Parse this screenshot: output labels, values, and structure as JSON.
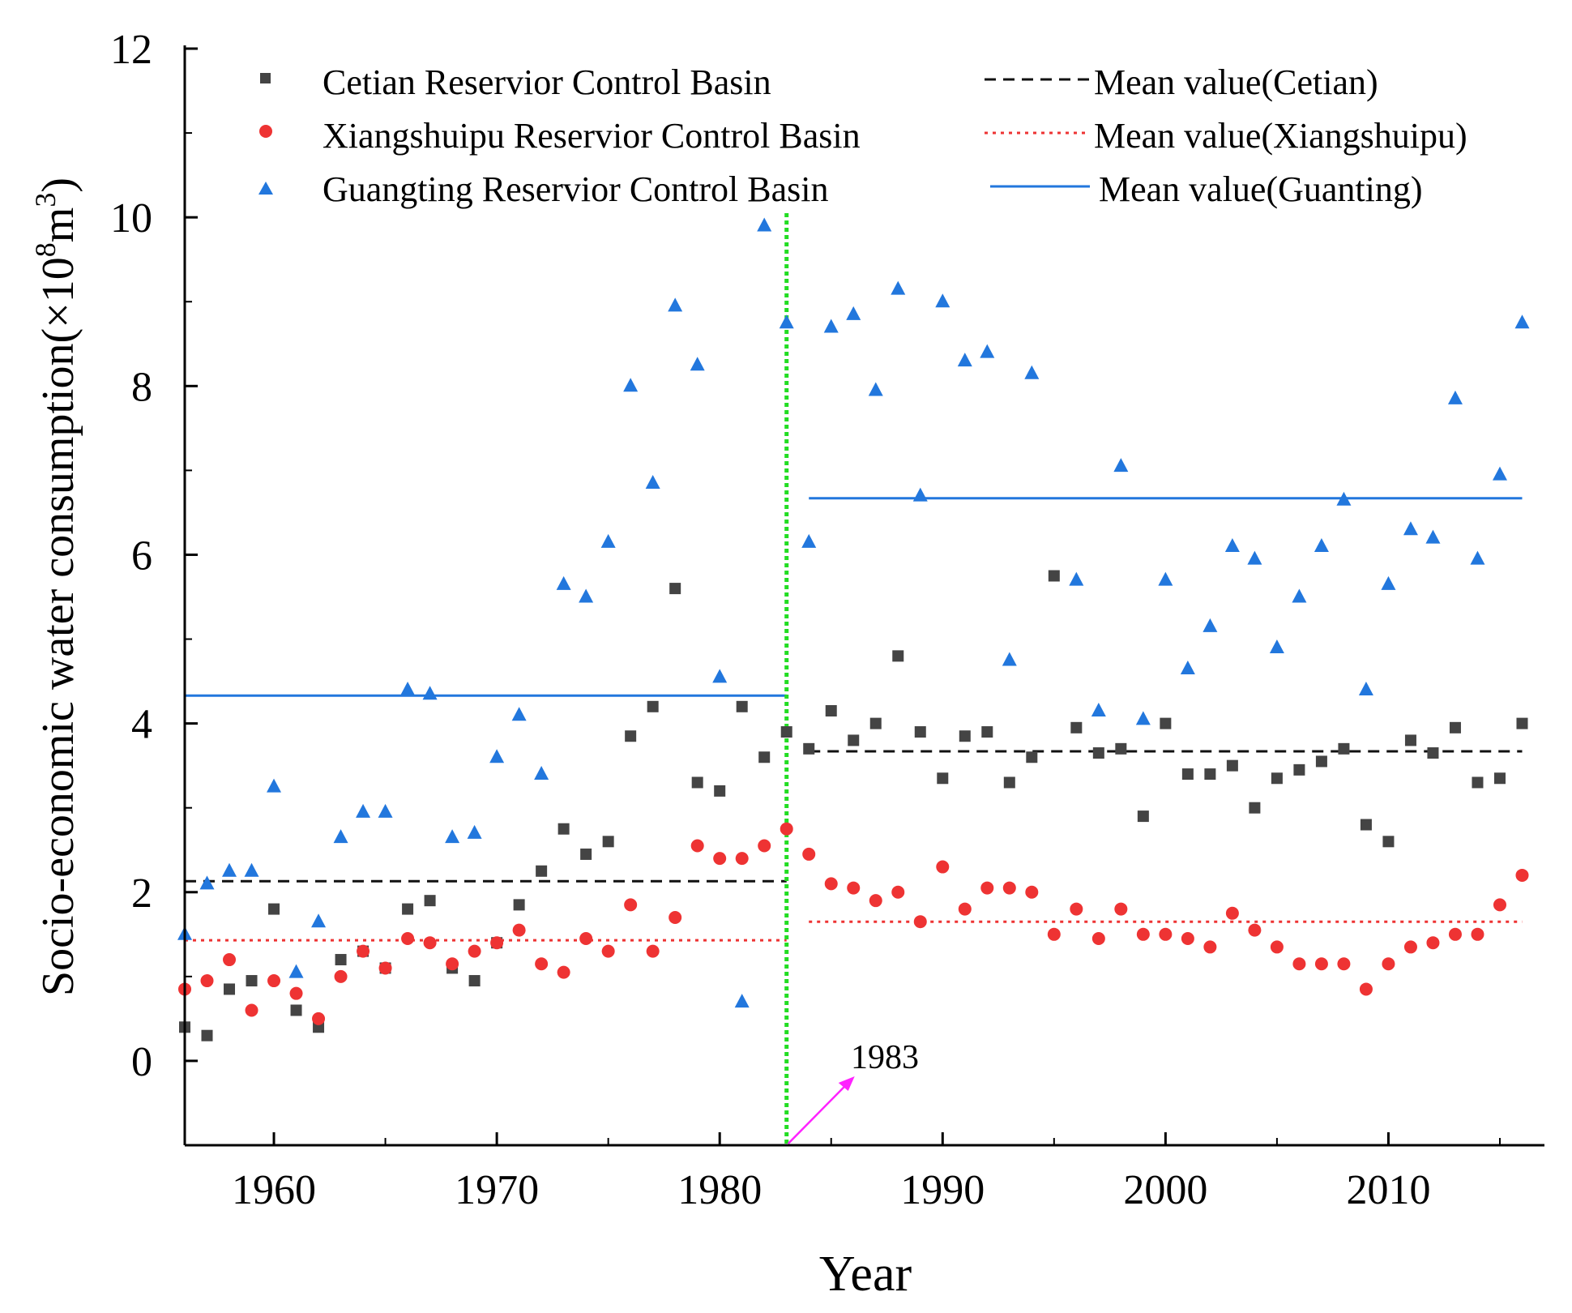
{
  "chart_data": {
    "type": "scatter",
    "xlabel": "Year",
    "ylabel_main": "Socio-economic water consumption(×10",
    "ylabel_exp1": "8",
    "ylabel_mid": "m",
    "ylabel_exp2": "3",
    "ylabel_end": ")",
    "xlim": [
      1956,
      2017
    ],
    "ylim": [
      -1,
      12
    ],
    "xticks": [
      1960,
      1970,
      1980,
      1990,
      2000,
      2010
    ],
    "xtick_labels": [
      "1960",
      "1970",
      "1980",
      "1990",
      "2000",
      "2010"
    ],
    "yticks": [
      0,
      2,
      4,
      6,
      8,
      10,
      12
    ],
    "ytick_labels": [
      "0",
      "2",
      "4",
      "6",
      "8",
      "10",
      "12"
    ],
    "years": [
      1956,
      1957,
      1958,
      1959,
      1960,
      1961,
      1962,
      1963,
      1964,
      1965,
      1966,
      1967,
      1968,
      1969,
      1970,
      1971,
      1972,
      1973,
      1974,
      1975,
      1976,
      1977,
      1978,
      1979,
      1980,
      1981,
      1982,
      1983,
      1984,
      1985,
      1986,
      1987,
      1988,
      1989,
      1990,
      1991,
      1992,
      1993,
      1994,
      1995,
      1996,
      1997,
      1998,
      1999,
      2000,
      2001,
      2002,
      2003,
      2004,
      2005,
      2006,
      2007,
      2008,
      2009,
      2010,
      2011,
      2012,
      2013,
      2014,
      2015,
      2016
    ],
    "series": [
      {
        "name": "Cetian Reservior Control Basin",
        "marker": "square",
        "color": "#444444",
        "values": [
          0.4,
          0.3,
          0.85,
          0.95,
          1.8,
          0.6,
          0.4,
          1.2,
          1.3,
          1.1,
          1.8,
          1.9,
          1.1,
          0.95,
          1.4,
          1.85,
          2.25,
          2.75,
          2.45,
          2.6,
          3.85,
          4.2,
          5.6,
          3.3,
          3.2,
          4.2,
          3.6,
          3.9,
          3.7,
          4.15,
          3.8,
          4.0,
          4.8,
          3.9,
          3.35,
          3.85,
          3.9,
          3.3,
          3.6,
          5.75,
          3.95,
          3.65,
          3.7,
          2.9,
          4.0,
          3.4,
          3.4,
          3.5,
          3.0,
          3.35,
          3.45,
          3.55,
          3.7,
          2.8,
          2.6,
          3.8,
          3.65,
          3.95,
          3.3,
          3.35,
          4.0
        ]
      },
      {
        "name": "Xiangshuipu Reservior Control Basin",
        "marker": "circle",
        "color": "#ee3333",
        "values": [
          0.85,
          0.95,
          1.2,
          0.6,
          0.95,
          0.8,
          0.5,
          1.0,
          1.3,
          1.1,
          1.45,
          1.4,
          1.15,
          1.3,
          1.4,
          1.55,
          1.15,
          1.05,
          1.45,
          1.3,
          1.85,
          1.3,
          1.7,
          2.55,
          2.4,
          2.4,
          2.55,
          2.75,
          2.45,
          2.1,
          2.05,
          1.9,
          2.0,
          1.65,
          2.3,
          1.8,
          2.05,
          2.05,
          2.0,
          1.5,
          1.8,
          1.45,
          1.8,
          1.5,
          1.5,
          1.45,
          1.35,
          1.75,
          1.55,
          1.35,
          1.15,
          1.15,
          1.15,
          0.85,
          1.15,
          1.35,
          1.4,
          1.5,
          1.5,
          1.85,
          2.2
        ]
      },
      {
        "name": "Guangting Reservior Control Basin",
        "marker": "triangle",
        "color": "#2277dd",
        "values": [
          1.5,
          2.1,
          2.25,
          2.25,
          3.25,
          1.05,
          1.65,
          2.65,
          2.95,
          2.95,
          4.4,
          4.35,
          2.65,
          2.7,
          3.6,
          4.1,
          3.4,
          5.65,
          5.5,
          6.15,
          8.0,
          6.85,
          8.95,
          8.25,
          4.55,
          0.7,
          9.9,
          8.75,
          6.15,
          8.7,
          8.85,
          7.95,
          9.15,
          6.7,
          9.0,
          8.3,
          8.4,
          4.75,
          8.15,
          null,
          5.7,
          4.15,
          7.05,
          4.05,
          5.7,
          4.65,
          5.15,
          6.1,
          5.95,
          4.9,
          5.5,
          6.1,
          6.65,
          4.4,
          5.65,
          6.3,
          6.2,
          7.85,
          5.95,
          6.95,
          8.75
        ]
      }
    ],
    "mean_lines": [
      {
        "name": "Mean value(Cetian)",
        "color": "#111111",
        "style": "dashed",
        "segments": [
          {
            "x0": 1956,
            "x1": 1983,
            "y": 2.13
          },
          {
            "x0": 1984,
            "x1": 2016,
            "y": 3.67
          }
        ]
      },
      {
        "name": "Mean value(Xiangshuipu)",
        "color": "#ee3333",
        "style": "dotted",
        "segments": [
          {
            "x0": 1956,
            "x1": 1983,
            "y": 1.43
          },
          {
            "x0": 1984,
            "x1": 2016,
            "y": 1.65
          }
        ]
      },
      {
        "name": "Mean value(Guanting)",
        "color": "#2277dd",
        "style": "solid",
        "segments": [
          {
            "x0": 1956,
            "x1": 1983,
            "y": 4.33
          },
          {
            "x0": 1984,
            "x1": 2016,
            "y": 6.67
          }
        ]
      }
    ],
    "change_point": {
      "year": 1983,
      "label": "1983",
      "color": "#22dd22",
      "label_color": "#ff22ff"
    },
    "legend_position": "top"
  }
}
